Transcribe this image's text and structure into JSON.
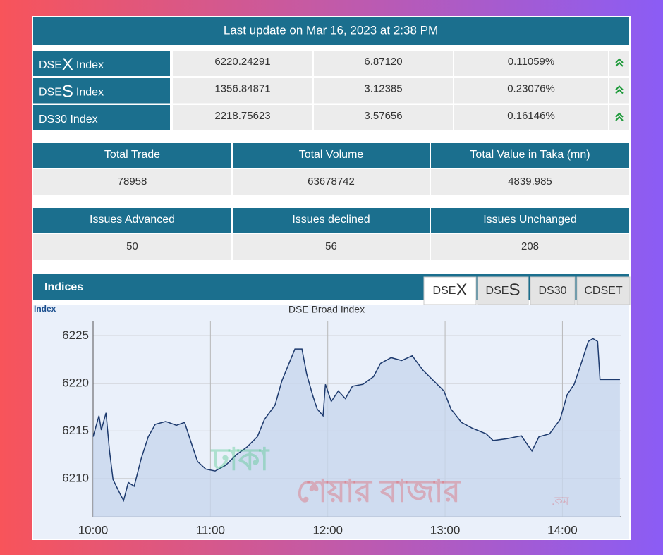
{
  "header": {
    "title": "Last update on Mar 16, 2023 at 2:38 PM"
  },
  "indices": {
    "rows": [
      {
        "name": [
          "DSE",
          "X",
          "Index"
        ],
        "value": "6220.24291",
        "change": "6.87120",
        "percent": "0.11059%"
      },
      {
        "name": [
          "DSE",
          "S",
          "Index"
        ],
        "value": "1356.84871",
        "change": "3.12385",
        "percent": "0.23076%"
      },
      {
        "name": [
          "DS30 Index"
        ],
        "value": "2218.75623",
        "change": "3.57656",
        "percent": "0.16146%"
      }
    ]
  },
  "trade_table": {
    "headers": [
      "Total Trade",
      "Total Volume",
      "Total Value in Taka (mn)"
    ],
    "values": [
      "78958",
      "63678742",
      "4839.985"
    ]
  },
  "issues_table": {
    "headers": [
      "Issues Advanced",
      "Issues declined",
      "Issues Unchanged"
    ],
    "values": [
      "50",
      "56",
      "208"
    ]
  },
  "panel": {
    "title": "Indices",
    "tabs": [
      [
        "DSE",
        "X"
      ],
      [
        "DSE",
        "S"
      ],
      [
        "DS30"
      ],
      [
        "CDSET"
      ]
    ]
  },
  "watermark": [
    "ঢাকা",
    "শেয়ার বাজার",
    ".কম"
  ],
  "chart_data": {
    "type": "line",
    "title": "DSE Broad Index",
    "y_label": "Index",
    "color": "#1d3a6e",
    "fill": "#c8d7ee",
    "x": [
      10.0,
      10.05,
      10.07,
      10.11,
      10.14,
      10.17,
      10.23,
      10.26,
      10.3,
      10.35,
      10.41,
      10.47,
      10.53,
      10.62,
      10.71,
      10.78,
      10.83,
      10.89,
      10.96,
      11.04,
      11.13,
      11.22,
      11.31,
      11.4,
      11.46,
      11.55,
      11.61,
      11.67,
      11.72,
      11.78,
      11.82,
      11.87,
      11.91,
      11.96,
      11.98,
      12.03,
      12.09,
      12.15,
      12.21,
      12.3,
      12.39,
      12.45,
      12.54,
      12.63,
      12.72,
      12.81,
      12.9,
      12.99,
      13.05,
      13.14,
      13.23,
      13.35,
      13.41,
      13.53,
      13.65,
      13.74,
      13.8,
      13.89,
      13.98,
      14.04,
      14.1,
      14.16,
      14.22,
      14.26,
      14.3,
      14.32,
      14.49
    ],
    "values": [
      6214.4,
      6216.6,
      6215.1,
      6216.9,
      6212.9,
      6209.9,
      6208.4,
      6207.7,
      6209.6,
      6209.2,
      6212.1,
      6214.4,
      6215.7,
      6216.0,
      6215.6,
      6215.9,
      6214.0,
      6211.8,
      6211.0,
      6210.8,
      6211.4,
      6212.5,
      6213.3,
      6214.4,
      6216.2,
      6217.7,
      6220.3,
      6222.1,
      6223.6,
      6223.6,
      6221.0,
      6218.8,
      6217.3,
      6216.6,
      6219.9,
      6218.1,
      6219.2,
      6218.4,
      6219.7,
      6219.9,
      6220.7,
      6222.1,
      6222.7,
      6222.4,
      6222.9,
      6221.4,
      6220.3,
      6219.2,
      6217.3,
      6215.9,
      6215.3,
      6214.7,
      6214.0,
      6214.2,
      6214.5,
      6212.9,
      6214.4,
      6214.7,
      6216.2,
      6218.8,
      6219.9,
      6222.1,
      6224.4,
      6224.7,
      6224.4,
      6220.4,
      6220.4
    ],
    "xlim": [
      10,
      14.5
    ],
    "ylim": [
      6206,
      6226.5
    ],
    "xticks": [
      {
        "value": 10,
        "label": "10:00"
      },
      {
        "value": 11,
        "label": "11:00"
      },
      {
        "value": 12,
        "label": "12:00"
      },
      {
        "value": 13,
        "label": "13:00"
      },
      {
        "value": 14,
        "label": "14:00"
      }
    ],
    "yticks": [
      6210,
      6215,
      6220,
      6225
    ],
    "grid": true
  }
}
